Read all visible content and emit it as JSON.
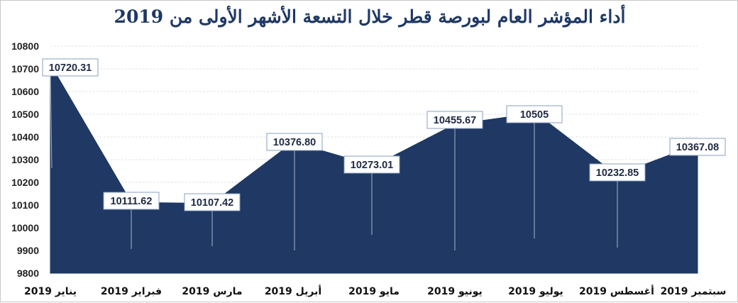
{
  "chart_data": {
    "type": "area",
    "title": "أداء المؤشر العام لبورصة قطر خلال التسعة الأشهر الأولى من 2019",
    "categories": [
      "يناير 2019",
      "فبراير 2019",
      "مارس 2019",
      "أبريل 2019",
      "مايو 2019",
      "يونيو 2019",
      "يوليو 2019",
      "أغسطس 2019",
      "سبتمبر 2019"
    ],
    "series": [
      {
        "values": [
          10720.31,
          10111.62,
          10107.42,
          10376.8,
          10273.01,
          10455.67,
          10505,
          10232.85,
          10367.08
        ],
        "labels": [
          "10720.31",
          "10111.62",
          "10107.42",
          "10376.80",
          "10273.01",
          "10455.67",
          "10505",
          "10232.85",
          "10367.08"
        ]
      }
    ],
    "ylim": [
      9800,
      10800
    ],
    "yticks": [
      "9800",
      "9900",
      "10000",
      "10100",
      "10200",
      "10300",
      "10400",
      "10500",
      "10600",
      "10700",
      "10800"
    ],
    "grid": true,
    "legend": "none",
    "colors": {
      "fill": "#1f3864",
      "label_border": "#8aa0bf",
      "text": "#1f2a44"
    }
  }
}
